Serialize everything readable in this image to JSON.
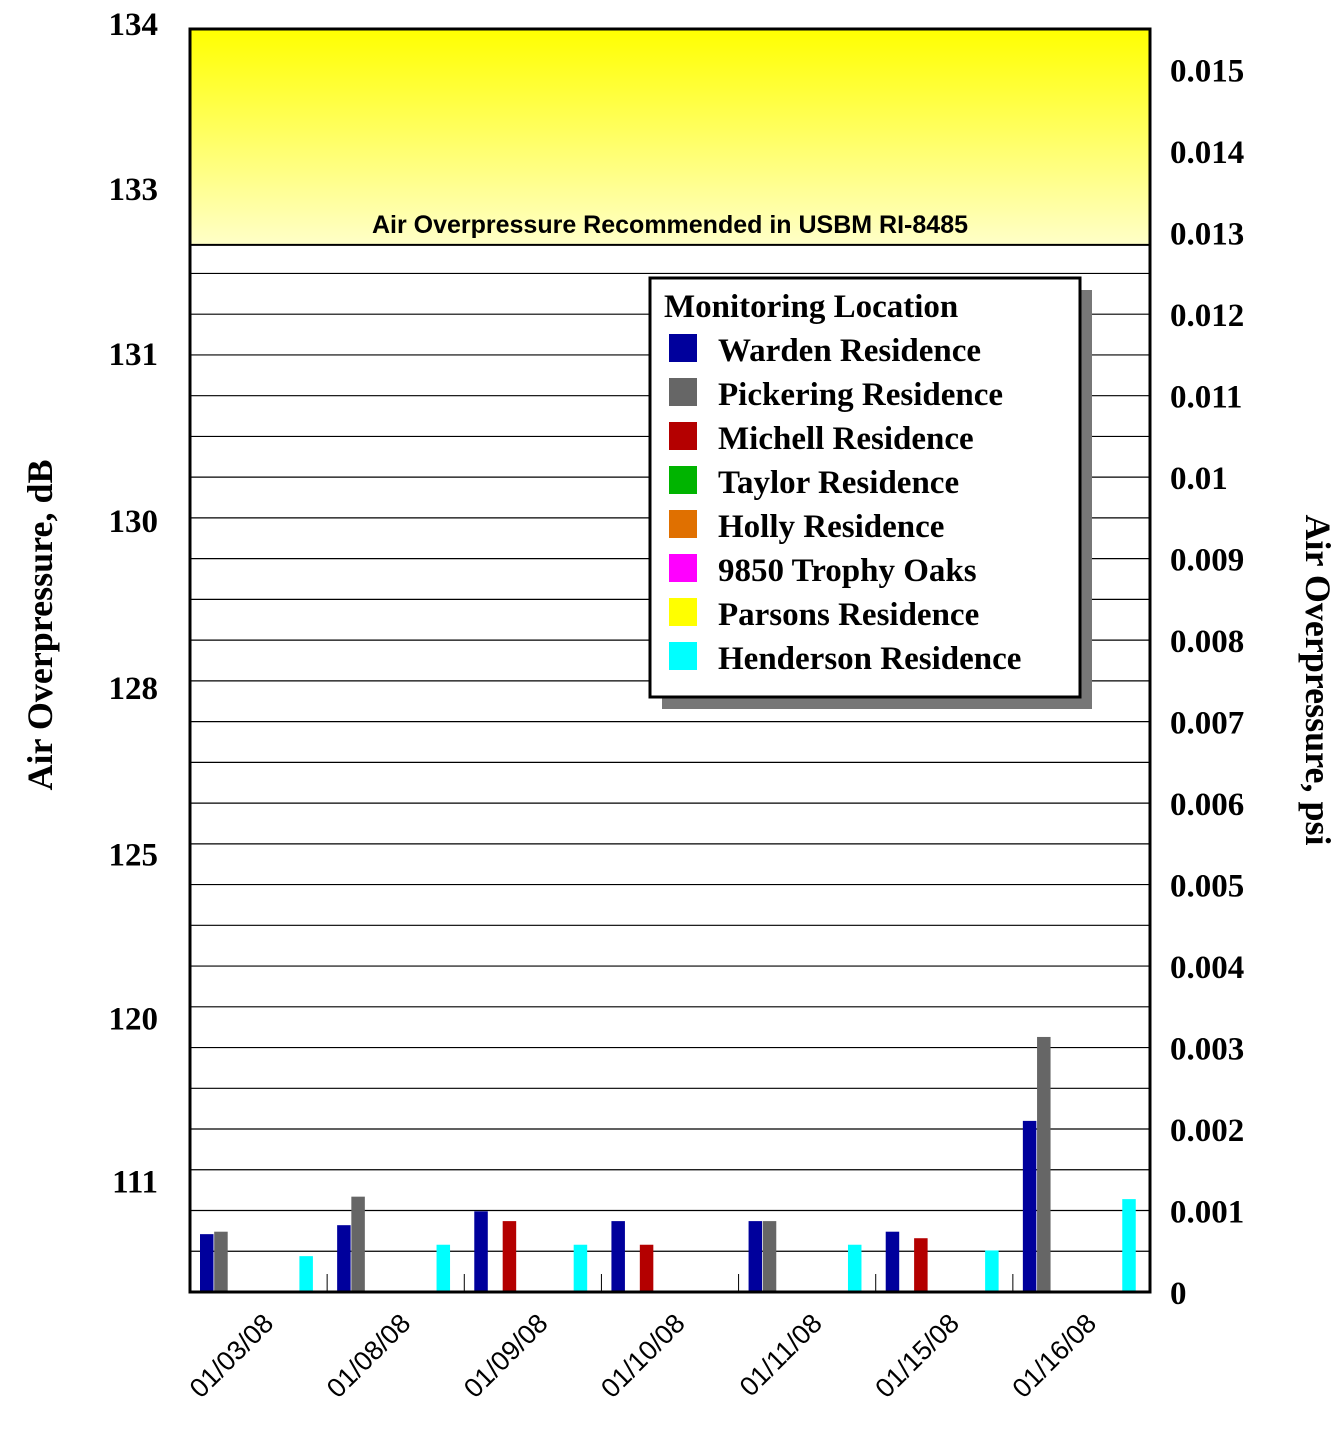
{
  "chart_data": {
    "type": "bar",
    "categories": [
      "01/03/08",
      "01/08/08",
      "01/09/08",
      "01/10/08",
      "01/11/08",
      "01/15/08",
      "01/16/08"
    ],
    "left_axis": {
      "title": "Air Overpressure, dB",
      "tick_labels": [
        "134",
        "133",
        "131",
        "130",
        "128",
        "125",
        "120",
        "111"
      ]
    },
    "right_axis": {
      "title": "Air Overpressure, psi",
      "ylim": [
        0,
        0.0155
      ],
      "tick_labels": [
        "0.015",
        "0.014",
        "0.013",
        "0.012",
        "0.011",
        "0.01",
        "0.009",
        "0.008",
        "0.007",
        "0.006",
        "0.005",
        "0.004",
        "0.003",
        "0.002",
        "0.001",
        "0"
      ],
      "tick_values": [
        0.015,
        0.014,
        0.013,
        0.012,
        0.011,
        0.01,
        0.009,
        0.008,
        0.007,
        0.006,
        0.005,
        0.004,
        0.003,
        0.002,
        0.001,
        0
      ]
    },
    "grid": true,
    "threshold_band": {
      "label": "Air Overpressure Recommended in USBM RI-8485",
      "from": 0.01285,
      "to": 0.0155,
      "color_top": "#ffff00",
      "color_bottom": "#ffffc8"
    },
    "legend": {
      "title": "Monitoring Location",
      "position": "upper-right"
    },
    "series": [
      {
        "name": "Warden Residence",
        "color": "#00009c",
        "values": [
          0.00071,
          0.00082,
          0.00099,
          0.00087,
          0.00087,
          0.00074,
          0.0021
        ]
      },
      {
        "name": "Pickering Residence",
        "color": "#666666",
        "values": [
          0.00074,
          0.00117,
          null,
          null,
          0.00087,
          null,
          0.00313
        ]
      },
      {
        "name": "Michell Residence",
        "color": "#b40000",
        "values": [
          null,
          null,
          0.00087,
          0.00058,
          null,
          0.00066,
          null
        ]
      },
      {
        "name": "Taylor Residence",
        "color": "#00b400",
        "values": [
          null,
          null,
          null,
          null,
          null,
          null,
          null
        ]
      },
      {
        "name": "Holly Residence",
        "color": "#e07000",
        "values": [
          null,
          null,
          null,
          null,
          null,
          null,
          null
        ]
      },
      {
        "name": "9850 Trophy Oaks",
        "color": "#ff00ff",
        "values": [
          null,
          null,
          null,
          null,
          null,
          null,
          null
        ]
      },
      {
        "name": "Parsons Residence",
        "color": "#ffff00",
        "values": [
          null,
          null,
          null,
          null,
          null,
          null,
          null
        ]
      },
      {
        "name": "Henderson Residence",
        "color": "#00ffff",
        "values": [
          0.00044,
          0.00058,
          0.00058,
          null,
          0.00058,
          0.00051,
          0.00114
        ]
      }
    ]
  }
}
